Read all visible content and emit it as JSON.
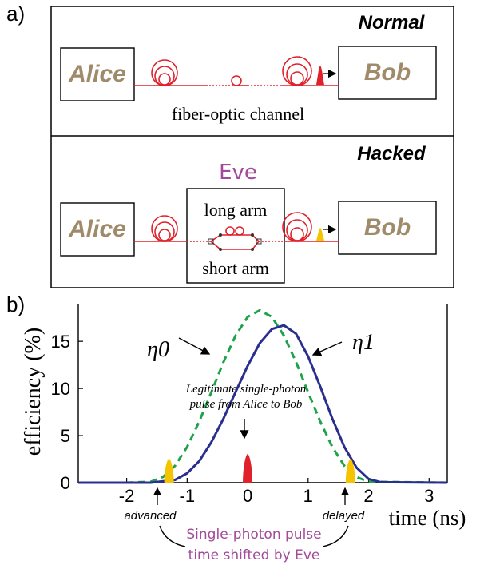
{
  "panels": {
    "a_label": "a)",
    "b_label": "b)"
  },
  "normal": {
    "mode_label": "Normal",
    "alice": "Alice",
    "bob": "Bob",
    "channel_label": "fiber-optic channel"
  },
  "hacked": {
    "mode_label": "Hacked",
    "alice": "Alice",
    "bob": "Bob",
    "eve": "Eve",
    "long_arm": "long arm",
    "short_arm": "short arm"
  },
  "colors": {
    "fiber": "#e0202a",
    "legit_pulse": "#e0202a",
    "shifted_pulse": "#f5c400",
    "eta0": "#1fa24a",
    "eta1": "#2a2f8f",
    "party_text": "#9f8a6a",
    "eve_text": "#a24a9a"
  },
  "chart_data": {
    "type": "line",
    "ylabel": "efficiency (%)",
    "xlabel": "time (ns)",
    "xlim": [
      -2.8,
      3.3
    ],
    "ylim": [
      0,
      19
    ],
    "x_ticks": [
      -2,
      -1,
      0,
      1,
      2,
      3
    ],
    "x_tick_labels": [
      "-2",
      "-1",
      "0",
      "1",
      "2",
      "3"
    ],
    "y_ticks": [
      0,
      5,
      10,
      15
    ],
    "y_tick_labels": [
      "0",
      "5",
      "10",
      "15"
    ],
    "series": [
      {
        "name": "η0",
        "style": "dashed",
        "x": [
          -2.8,
          -2.0,
          -1.6,
          -1.4,
          -1.2,
          -1.0,
          -0.8,
          -0.6,
          -0.4,
          -0.2,
          0.0,
          0.2,
          0.4,
          0.6,
          0.8,
          1.0,
          1.2,
          1.4,
          1.6,
          1.8,
          2.0,
          3.3
        ],
        "y": [
          0,
          0,
          0.1,
          0.6,
          1.8,
          3.8,
          6.5,
          9.6,
          12.8,
          15.6,
          17.6,
          18.3,
          17.6,
          15.6,
          12.8,
          9.6,
          6.5,
          3.8,
          1.8,
          0.6,
          0.1,
          0
        ]
      },
      {
        "name": "η1",
        "style": "solid",
        "x": [
          -2.8,
          -1.6,
          -1.2,
          -1.0,
          -0.8,
          -0.6,
          -0.4,
          -0.2,
          0.0,
          0.2,
          0.4,
          0.6,
          0.8,
          1.0,
          1.2,
          1.4,
          1.6,
          1.8,
          2.0,
          2.2,
          3.3
        ],
        "y": [
          0,
          0,
          0.3,
          1.0,
          2.3,
          4.3,
          6.8,
          9.6,
          12.4,
          14.8,
          16.3,
          16.7,
          15.8,
          13.4,
          10.2,
          6.8,
          3.8,
          1.6,
          0.4,
          0.05,
          0
        ]
      }
    ],
    "pulses": [
      {
        "kind": "shifted",
        "x": -1.3
      },
      {
        "kind": "legit",
        "x": 0.0
      },
      {
        "kind": "shifted",
        "x": 1.7
      }
    ],
    "annotations": {
      "legit_line1": "Legitimate single-photon",
      "legit_line2": "pulse from Alice to Bob",
      "advanced": "advanced",
      "delayed": "delayed",
      "shift_line1": "Single-photon pulse",
      "shift_line2": "time shifted by Eve"
    }
  }
}
